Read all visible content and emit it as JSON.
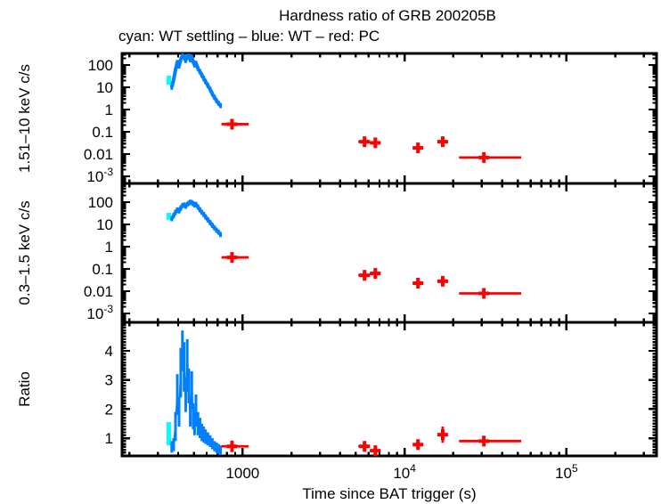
{
  "title": "Hardness ratio of GRB 200205B",
  "subtitle": "cyan: WT settling – blue: WT – red: PC",
  "colors": {
    "wt_settling": "#00ffff",
    "wt": "#0080ff",
    "pc": "#ff0000",
    "frame": "#000000",
    "background": "#ffffff"
  },
  "chart_data": {
    "type": "line",
    "title": "Hardness ratio of GRB 200205B",
    "legend": [
      {
        "color_name": "cyan",
        "series": "WT settling"
      },
      {
        "color_name": "blue",
        "series": "WT"
      },
      {
        "color_name": "red",
        "series": "PC"
      }
    ],
    "x_axis": {
      "scale": "log",
      "min": 180,
      "max": 360000,
      "label": "Time since BAT trigger (s)",
      "major_ticks": [
        {
          "v": 1000,
          "label": "1000"
        },
        {
          "v": 10000,
          "label": "10^4"
        },
        {
          "v": 100000,
          "label": "10^5"
        }
      ]
    },
    "wt_times_s": [
      365,
      375,
      385,
      395,
      405,
      415,
      425,
      435,
      445,
      455,
      465,
      475,
      485,
      495,
      505,
      515,
      530,
      545,
      560,
      575,
      590,
      610,
      630,
      650,
      670,
      690,
      710,
      730
    ],
    "pc_time_bins": [
      {
        "t": 860,
        "t_lo": 740,
        "t_hi": 1090
      },
      {
        "t": 5660,
        "t_lo": 5180,
        "t_hi": 6100
      },
      {
        "t": 6600,
        "t_lo": 6100,
        "t_hi": 7100
      },
      {
        "t": 12100,
        "t_lo": 11500,
        "t_hi": 12750
      },
      {
        "t": 17200,
        "t_lo": 16150,
        "t_hi": 18500
      },
      {
        "t": 30900,
        "t_lo": 21700,
        "t_hi": 52500
      }
    ],
    "panels": [
      {
        "ylabel": "1.51–10 keV c/s",
        "y_axis": {
          "scale": "log",
          "min": 0.00048,
          "max": 331,
          "major_ticks": [
            {
              "v": 100,
              "label": "100"
            },
            {
              "v": 10,
              "label": "10"
            },
            {
              "v": 1,
              "label": "1"
            },
            {
              "v": 0.1,
              "label": "0.1"
            },
            {
              "v": 0.01,
              "label": "0.01"
            },
            {
              "v": 0.001,
              "label": "10^-3"
            }
          ]
        },
        "wt_settling": {
          "t": 350,
          "lo": 13,
          "hi": 33
        },
        "wt": {
          "v": [
            10,
            22,
            60,
            130,
            90,
            180,
            260,
            230,
            160,
            240,
            250,
            170,
            230,
            140,
            100,
            120,
            70,
            50,
            35,
            25,
            18,
            12,
            8,
            5,
            3.5,
            2.5,
            1.9,
            1.5
          ],
          "err_factor": 1.3
        },
        "pc_values": [
          0.22,
          0.036,
          0.032,
          0.019,
          0.036,
          0.007
        ],
        "pc_err_factor": 1.35
      },
      {
        "ylabel": "0.3–1.5 keV c/s",
        "y_axis": {
          "scale": "log",
          "min": 0.0004,
          "max": 692,
          "major_ticks": [
            {
              "v": 100,
              "label": "100"
            },
            {
              "v": 10,
              "label": "10"
            },
            {
              "v": 1,
              "label": "1"
            },
            {
              "v": 0.1,
              "label": "0.1"
            },
            {
              "v": 0.01,
              "label": "0.01"
            },
            {
              "v": 0.001,
              "label": "10^-3"
            }
          ]
        },
        "wt_settling": {
          "t": 350,
          "lo": 16,
          "hi": 33
        },
        "wt": {
          "v": [
            18,
            25,
            35,
            45,
            40,
            55,
            70,
            75,
            65,
            80,
            90,
            100,
            95,
            85,
            75,
            80,
            60,
            45,
            35,
            28,
            22,
            16,
            12,
            9,
            7,
            5.5,
            4.5,
            3.5
          ],
          "err_factor": 1.3
        },
        "pc_values": [
          0.33,
          0.052,
          0.063,
          0.023,
          0.028,
          0.008
        ],
        "pc_err_factor": 1.35
      },
      {
        "ylabel": "Ratio",
        "y_axis": {
          "scale": "linear",
          "min": 0.39,
          "max": 4.98,
          "minor_step": 0.1,
          "major_ticks": [
            {
              "v": 1,
              "label": "1"
            },
            {
              "v": 2,
              "label": "2"
            },
            {
              "v": 3,
              "label": "3"
            },
            {
              "v": 4,
              "label": "4"
            }
          ]
        },
        "wt_settling": {
          "t": 350,
          "lo": 0.75,
          "hi": 1.55
        },
        "wt_band": {
          "lo": [
            0.5,
            0.55,
            0.9,
            1.8,
            1.4,
            2.4,
            3.3,
            2.6,
            1.9,
            2.6,
            2.2,
            1.4,
            2.0,
            1.3,
            1.1,
            1.4,
            1.1,
            1.0,
            0.9,
            0.85,
            0.8,
            0.75,
            0.7,
            0.62,
            0.55,
            0.5,
            0.45,
            0.42
          ],
          "hi": [
            0.9,
            1.0,
            1.9,
            3.2,
            2.4,
            4.1,
            4.7,
            4.3,
            3.0,
            4.4,
            3.4,
            2.3,
            3.3,
            2.2,
            1.9,
            2.5,
            1.9,
            1.7,
            1.5,
            1.4,
            1.3,
            1.2,
            1.1,
            1.0,
            0.9,
            0.85,
            0.8,
            0.75
          ]
        },
        "pc_values": [
          0.72,
          0.72,
          0.57,
          0.78,
          1.12,
          0.9
        ],
        "pc_errors": [
          0.2,
          0.12,
          0.1,
          0.15,
          0.28,
          0.18
        ]
      }
    ]
  }
}
